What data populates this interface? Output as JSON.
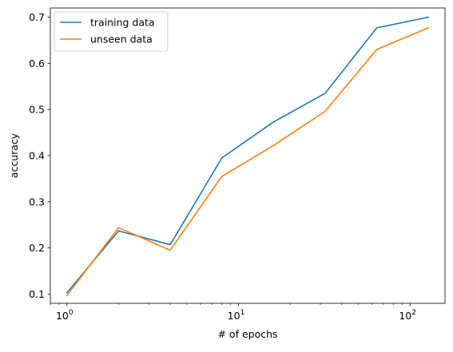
{
  "chart_data": {
    "type": "line",
    "title": "",
    "xlabel": "# of epochs",
    "ylabel": "accuracy",
    "xscale": "log",
    "x": [
      1,
      2,
      4,
      8,
      16,
      32,
      64,
      128
    ],
    "series": [
      {
        "name": "training data",
        "color": "#1f77b4",
        "values": [
          0.103,
          0.237,
          0.207,
          0.395,
          0.473,
          0.535,
          0.677,
          0.7
        ]
      },
      {
        "name": "unseen data",
        "color": "#ff7f0e",
        "values": [
          0.097,
          0.244,
          0.195,
          0.355,
          0.422,
          0.496,
          0.63,
          0.677
        ]
      }
    ],
    "xlim": [
      0.8,
      160
    ],
    "ylim": [
      0.08,
      0.72
    ],
    "yticks": [
      0.1,
      0.2,
      0.3,
      0.4,
      0.5,
      0.6,
      0.7
    ],
    "ytick_labels": [
      "0.1",
      "0.2",
      "0.3",
      "0.4",
      "0.5",
      "0.6",
      "0.7"
    ],
    "xticks": [
      1,
      10,
      100
    ],
    "xtick_labels": [
      {
        "base": "10",
        "exp": "0"
      },
      {
        "base": "10",
        "exp": "1"
      },
      {
        "base": "10",
        "exp": "2"
      }
    ],
    "grid": false,
    "legend_position": "upper-left"
  }
}
